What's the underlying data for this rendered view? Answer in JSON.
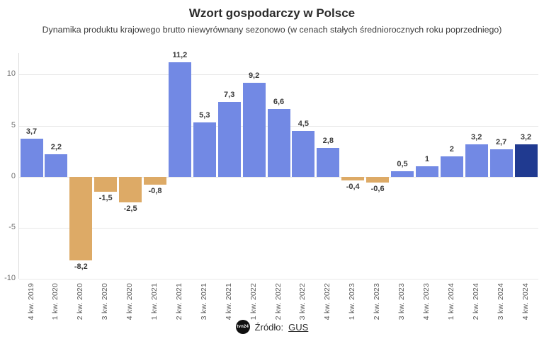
{
  "header": {
    "title": "Wzort gospodarczy w Polsce",
    "subtitle": "Dynamika produktu krajowego brutto niewyrównany sezonowo (w cenach stałych średniorocznych roku poprzedniego)"
  },
  "chart_data": {
    "type": "bar",
    "title": "Wzort gospodarczy w Polsce",
    "subtitle": "Dynamika produktu krajowego brutto niewyrównany sezonowo (w cenach stałych średniorocznych roku poprzedniego)",
    "categories": [
      "4 kw. 2019",
      "1 kw. 2020",
      "2 kw. 2020",
      "3 kw. 2020",
      "4 kw. 2020",
      "1 kw. 2021",
      "2 kw. 2021",
      "3 kw. 2021",
      "4 kw. 2021",
      "1 kw. 2022",
      "2 kw. 2022",
      "3 kw. 2022",
      "4 kw. 2022",
      "1 kw. 2023",
      "2 kw. 2023",
      "3 kw. 2023",
      "4 kw. 2023",
      "1 kw. 2024",
      "2 kw. 2024",
      "3 kw. 2024",
      "4 kw. 2024"
    ],
    "values": [
      3.7,
      2.2,
      -8.2,
      -1.5,
      -2.5,
      -0.8,
      11.2,
      5.3,
      7.3,
      9.2,
      6.6,
      4.5,
      2.8,
      -0.4,
      -0.6,
      0.5,
      1,
      2,
      3.2,
      2.7,
      3.2
    ],
    "value_labels": [
      "3,7",
      "2,2",
      "-8,2",
      "-1,5",
      "-2,5",
      "-0,8",
      "11,2",
      "5,3",
      "7,3",
      "9,2",
      "6,6",
      "4,5",
      "2,8",
      "-0,4",
      "-0,6",
      "0,5",
      "1",
      "2",
      "3,2",
      "2,7",
      "3,2"
    ],
    "yticks": [
      10,
      5,
      0,
      -5,
      -10
    ],
    "ytick_labels": [
      "10",
      "5",
      "0",
      "-5",
      "-10"
    ],
    "ylim": [
      -10,
      12.1
    ],
    "xlabel": "",
    "ylabel": "",
    "grid": "horizontal",
    "legend": null,
    "highlight_index": 20,
    "colors": {
      "positive": "#7289e4",
      "negative": "#ddaa66",
      "highlight": "#203a90",
      "grid": "#e8e8e8",
      "axis": "#dcdcdc",
      "value_label": "#3a3a3a",
      "tick_label": "#5a5a5a"
    }
  },
  "footer": {
    "logo_text": "tvn24",
    "source_label": "Źródło:",
    "source_link": "GUS"
  }
}
